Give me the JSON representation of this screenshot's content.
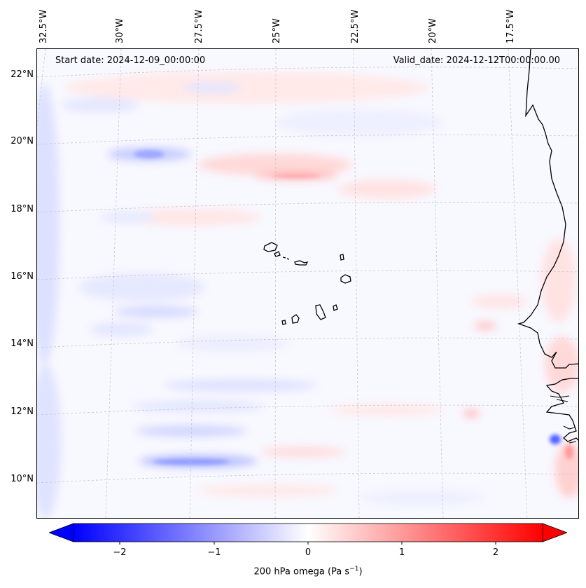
{
  "header": {
    "start_date": "Start date: 2024-12-09_00:00:00",
    "valid_date": "Valid_date: 2024-12-12T00:00:00.00"
  },
  "axes": {
    "lon_labels": [
      "32.5°W",
      "30°W",
      "27.5°W",
      "25°W",
      "22.5°W",
      "20°W",
      "17.5°W"
    ],
    "lat_labels": [
      "22°N",
      "20°N",
      "18°N",
      "16°N",
      "14°N",
      "12°N",
      "10°N"
    ]
  },
  "colorbar": {
    "ticks": [
      "−2",
      "−1",
      "0",
      "1",
      "2"
    ],
    "title": "200 hPa omega (Pa s",
    "title_sup": "−1",
    "title_close": ")",
    "range": [
      -2.6,
      2.6
    ],
    "colors": {
      "low": "#0000ff",
      "mid": "#ffffff",
      "high": "#ff0000"
    }
  },
  "map": {
    "projection": "lambert-conformal",
    "extent": {
      "lon": [
        -33.5,
        -15.5
      ],
      "lat": [
        8.8,
        22.8
      ]
    },
    "coastline_color": "#000000",
    "gridline_color": "#c8c8c8"
  }
}
